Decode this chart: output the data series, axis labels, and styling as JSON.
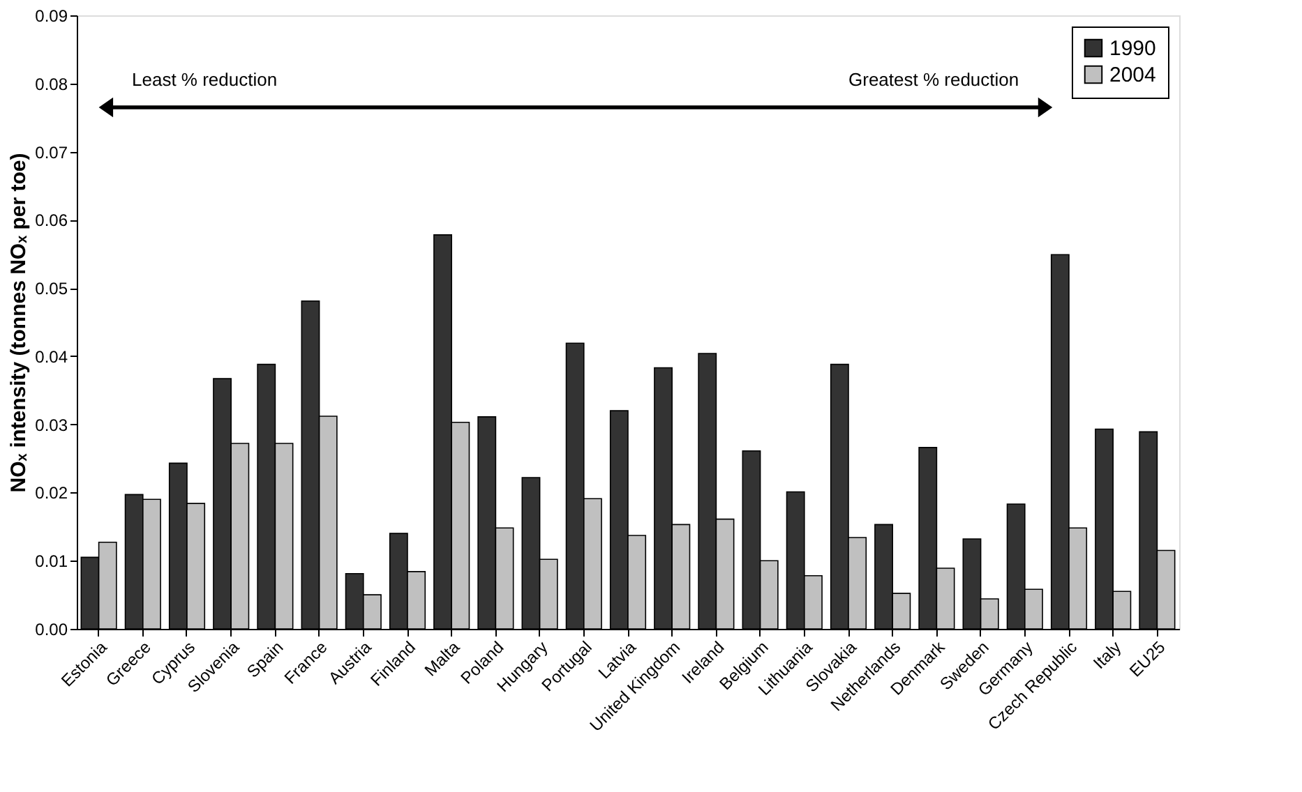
{
  "chart_data": {
    "type": "bar",
    "ylabel": "NOₓ intensity (tonnes NOₓ per toe)",
    "categories": [
      "Estonia",
      "Greece",
      "Cyprus",
      "Slovenia",
      "Spain",
      "France",
      "Austria",
      "Finland",
      "Malta",
      "Poland",
      "Hungary",
      "Portugal",
      "Latvia",
      "United Kingdom",
      "Ireland",
      "Belgium",
      "Lithuania",
      "Slovakia",
      "Netherlands",
      "Denmark",
      "Sweden",
      "Germany",
      "Czech Republic",
      "Italy",
      "EU25"
    ],
    "series": [
      {
        "name": "1990",
        "color": "#333333",
        "values": [
          0.0105,
          0.0197,
          0.0243,
          0.0367,
          0.0388,
          0.0481,
          0.0081,
          0.014,
          0.0578,
          0.0311,
          0.0222,
          0.0419,
          0.032,
          0.0383,
          0.0404,
          0.0261,
          0.0201,
          0.0388,
          0.0153,
          0.0266,
          0.0132,
          0.0183,
          0.0549,
          0.0293,
          0.0289
        ]
      },
      {
        "name": "2004",
        "color": "#c0c0c0",
        "values": [
          0.0127,
          0.019,
          0.0184,
          0.0272,
          0.0272,
          0.0312,
          0.005,
          0.0084,
          0.0303,
          0.0148,
          0.0102,
          0.0191,
          0.0137,
          0.0153,
          0.0161,
          0.01,
          0.0078,
          0.0134,
          0.0052,
          0.0089,
          0.0044,
          0.0058,
          0.0148,
          0.0055,
          0.0115
        ]
      }
    ],
    "ylim": [
      0,
      0.09
    ],
    "yticks": [
      {
        "value": 0,
        "label": "0.00"
      },
      {
        "value": 0.01,
        "label": "0.01"
      },
      {
        "value": 0.02,
        "label": "0.02"
      },
      {
        "value": 0.03,
        "label": "0.03"
      },
      {
        "value": 0.04,
        "label": "0.04"
      },
      {
        "value": 0.05,
        "label": "0.05"
      },
      {
        "value": 0.06,
        "label": "0.06"
      },
      {
        "value": 0.07,
        "label": "0.07"
      },
      {
        "value": 0.08,
        "label": "0.08"
      },
      {
        "value": 0.09,
        "label": "0.09"
      }
    ],
    "annotations": [
      "Least % reduction",
      "Greatest % reduction"
    ],
    "legend": "top right",
    "grid": false
  }
}
